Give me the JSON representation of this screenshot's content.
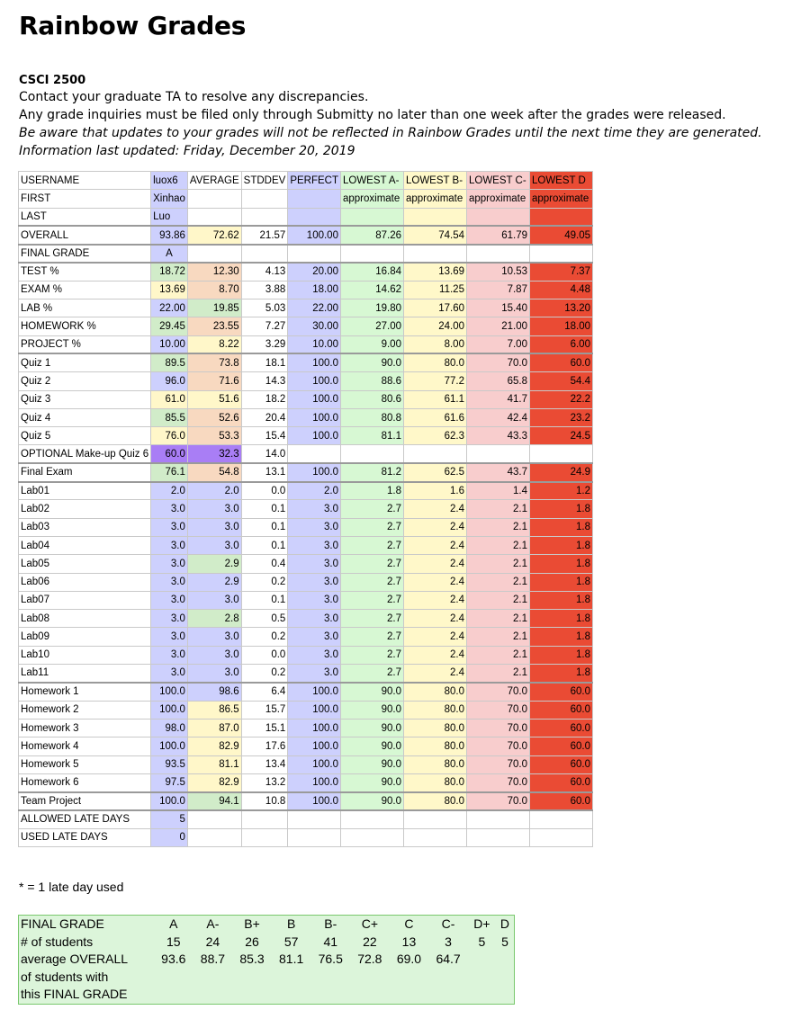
{
  "title": "Rainbow Grades",
  "course": "CSCI 2500",
  "info": {
    "line1": "Contact your graduate TA to resolve any discrepancies.",
    "line2": "Any grade inquiries must be filed only through Submitty no later than one week after the grades were released.",
    "line3": "Be aware that updates to your grades will not be reflected in Rainbow Grades until the next time they are generated.",
    "line4": "Information last updated: Friday, December 20, 2019"
  },
  "colors": {
    "student": "#cdd0fd",
    "student_highlight": "#a97ef5",
    "avg_low": "#f8d9c0",
    "avg_mid": "#fff7c9",
    "avg_high": "#d1ecc9",
    "perfect": "#cdd0fd",
    "lowest_a": "#d7f8d3",
    "lowest_b": "#fff8c9",
    "lowest_c": "#f8cdcd",
    "lowest_d": "#ea4b34",
    "summary_bg": "#dcf5da"
  },
  "header_rows": [
    {
      "label": "USERNAME",
      "cells": [
        "luox6",
        "AVERAGE",
        "STDDEV",
        "PERFECT",
        "LOWEST A-",
        "LOWEST B-",
        "LOWEST C-",
        "LOWEST D"
      ]
    },
    {
      "label": "FIRST",
      "cells": [
        "Xinhao",
        "",
        "",
        "",
        "approximate",
        "approximate",
        "approximate",
        "approximate"
      ]
    },
    {
      "label": "LAST",
      "cells": [
        "Luo",
        "",
        "",
        "",
        "",
        "",
        "",
        ""
      ]
    }
  ],
  "rows": [
    {
      "label": "OVERALL",
      "cells": [
        "93.86",
        "72.62",
        "21.57",
        "100.00",
        "87.26",
        "74.54",
        "61.79",
        "49.05"
      ],
      "sep": true,
      "avg_color": "avg_mid"
    },
    {
      "label": "FINAL GRADE",
      "cells": [
        "A",
        "",
        "",
        "",
        "",
        "",
        "",
        ""
      ],
      "sep": true,
      "center_first": true,
      "blank_row": true
    },
    {
      "label": "TEST %",
      "cells": [
        "18.72",
        "12.30",
        "4.13",
        "20.00",
        "16.84",
        "13.69",
        "10.53",
        "7.37"
      ],
      "sep": true,
      "student_color": "avg_high",
      "avg_color": "avg_low"
    },
    {
      "label": "EXAM %",
      "cells": [
        "13.69",
        "8.70",
        "3.88",
        "18.00",
        "14.62",
        "11.25",
        "7.87",
        "4.48"
      ],
      "student_color": "avg_mid",
      "avg_color": "avg_low"
    },
    {
      "label": "LAB %",
      "cells": [
        "22.00",
        "19.85",
        "5.03",
        "22.00",
        "19.80",
        "17.60",
        "15.40",
        "13.20"
      ],
      "avg_color": "avg_high"
    },
    {
      "label": "HOMEWORK %",
      "cells": [
        "29.45",
        "23.55",
        "7.27",
        "30.00",
        "27.00",
        "24.00",
        "21.00",
        "18.00"
      ],
      "student_color": "avg_high",
      "avg_color": "avg_low"
    },
    {
      "label": "PROJECT %",
      "cells": [
        "10.00",
        "8.22",
        "3.29",
        "10.00",
        "9.00",
        "8.00",
        "7.00",
        "6.00"
      ],
      "avg_color": "avg_mid"
    },
    {
      "label": "Quiz 1",
      "cells": [
        "89.5",
        "73.8",
        "18.1",
        "100.0",
        "90.0",
        "80.0",
        "70.0",
        "60.0"
      ],
      "sep": true,
      "student_color": "avg_high",
      "avg_color": "avg_low"
    },
    {
      "label": "Quiz 2",
      "cells": [
        "96.0",
        "71.6",
        "14.3",
        "100.0",
        "88.6",
        "77.2",
        "65.8",
        "54.4"
      ],
      "avg_color": "avg_low"
    },
    {
      "label": "Quiz 3",
      "cells": [
        "61.0",
        "51.6",
        "18.2",
        "100.0",
        "80.6",
        "61.1",
        "41.7",
        "22.2"
      ],
      "student_color": "avg_mid",
      "avg_color": "avg_mid"
    },
    {
      "label": "Quiz 4",
      "cells": [
        "85.5",
        "52.6",
        "20.4",
        "100.0",
        "80.8",
        "61.6",
        "42.4",
        "23.2"
      ],
      "student_color": "avg_high",
      "avg_color": "avg_low"
    },
    {
      "label": "Quiz 5",
      "cells": [
        "76.0",
        "53.3",
        "15.4",
        "100.0",
        "81.1",
        "62.3",
        "43.3",
        "24.5"
      ],
      "student_color": "avg_mid",
      "avg_color": "avg_low"
    },
    {
      "label": "OPTIONAL Make-up Quiz 6",
      "cells": [
        "60.0",
        "32.3",
        "14.0",
        "",
        "",
        "",
        "",
        ""
      ],
      "student_color": "student_highlight",
      "avg_color": "student_highlight",
      "blank_row": true
    },
    {
      "label": "Final Exam",
      "cells": [
        "76.1",
        "54.8",
        "13.1",
        "100.0",
        "81.2",
        "62.5",
        "43.7",
        "24.9"
      ],
      "sep": true,
      "student_color": "avg_high",
      "avg_color": "avg_low"
    },
    {
      "label": "Lab01",
      "cells": [
        "2.0",
        "2.0",
        "0.0",
        "2.0",
        "1.8",
        "1.6",
        "1.4",
        "1.2"
      ],
      "sep": true,
      "avg_color": "student"
    },
    {
      "label": "Lab02",
      "cells": [
        "3.0",
        "3.0",
        "0.1",
        "3.0",
        "2.7",
        "2.4",
        "2.1",
        "1.8"
      ],
      "avg_color": "student"
    },
    {
      "label": "Lab03",
      "cells": [
        "3.0",
        "3.0",
        "0.1",
        "3.0",
        "2.7",
        "2.4",
        "2.1",
        "1.8"
      ],
      "avg_color": "student"
    },
    {
      "label": "Lab04",
      "cells": [
        "3.0",
        "3.0",
        "0.1",
        "3.0",
        "2.7",
        "2.4",
        "2.1",
        "1.8"
      ],
      "avg_color": "student"
    },
    {
      "label": "Lab05",
      "cells": [
        "3.0",
        "2.9",
        "0.4",
        "3.0",
        "2.7",
        "2.4",
        "2.1",
        "1.8"
      ],
      "avg_color": "avg_high"
    },
    {
      "label": "Lab06",
      "cells": [
        "3.0",
        "2.9",
        "0.2",
        "3.0",
        "2.7",
        "2.4",
        "2.1",
        "1.8"
      ],
      "avg_color": "student"
    },
    {
      "label": "Lab07",
      "cells": [
        "3.0",
        "3.0",
        "0.1",
        "3.0",
        "2.7",
        "2.4",
        "2.1",
        "1.8"
      ],
      "avg_color": "student"
    },
    {
      "label": "Lab08",
      "cells": [
        "3.0",
        "2.8",
        "0.5",
        "3.0",
        "2.7",
        "2.4",
        "2.1",
        "1.8"
      ],
      "avg_color": "avg_high"
    },
    {
      "label": "Lab09",
      "cells": [
        "3.0",
        "3.0",
        "0.2",
        "3.0",
        "2.7",
        "2.4",
        "2.1",
        "1.8"
      ],
      "avg_color": "student"
    },
    {
      "label": "Lab10",
      "cells": [
        "3.0",
        "3.0",
        "0.0",
        "3.0",
        "2.7",
        "2.4",
        "2.1",
        "1.8"
      ],
      "avg_color": "student"
    },
    {
      "label": "Lab11",
      "cells": [
        "3.0",
        "3.0",
        "0.2",
        "3.0",
        "2.7",
        "2.4",
        "2.1",
        "1.8"
      ],
      "avg_color": "student"
    },
    {
      "label": "Homework 1",
      "cells": [
        "100.0",
        "98.6",
        "6.4",
        "100.0",
        "90.0",
        "80.0",
        "70.0",
        "60.0"
      ],
      "sep": true,
      "avg_color": "student"
    },
    {
      "label": "Homework 2",
      "cells": [
        "100.0",
        "86.5",
        "15.7",
        "100.0",
        "90.0",
        "80.0",
        "70.0",
        "60.0"
      ],
      "avg_color": "avg_mid"
    },
    {
      "label": "Homework 3",
      "cells": [
        "98.0",
        "87.0",
        "15.1",
        "100.0",
        "90.0",
        "80.0",
        "70.0",
        "60.0"
      ],
      "avg_color": "avg_mid"
    },
    {
      "label": "Homework 4",
      "cells": [
        "100.0",
        "82.9",
        "17.6",
        "100.0",
        "90.0",
        "80.0",
        "70.0",
        "60.0"
      ],
      "avg_color": "avg_mid"
    },
    {
      "label": "Homework 5",
      "cells": [
        "93.5",
        "81.1",
        "13.4",
        "100.0",
        "90.0",
        "80.0",
        "70.0",
        "60.0"
      ],
      "avg_color": "avg_mid"
    },
    {
      "label": "Homework 6",
      "cells": [
        "97.5",
        "82.9",
        "13.2",
        "100.0",
        "90.0",
        "80.0",
        "70.0",
        "60.0"
      ],
      "avg_color": "avg_mid"
    },
    {
      "label": "Team Project",
      "cells": [
        "100.0",
        "94.1",
        "10.8",
        "100.0",
        "90.0",
        "80.0",
        "70.0",
        "60.0"
      ],
      "sep": true,
      "avg_color": "avg_high"
    },
    {
      "label": "ALLOWED LATE DAYS",
      "cells": [
        "5",
        "",
        "",
        "",
        "",
        "",
        "",
        ""
      ],
      "sep": true,
      "blank_row": true
    },
    {
      "label": "USED LATE DAYS",
      "cells": [
        "0",
        "",
        "",
        "",
        "",
        "",
        "",
        ""
      ],
      "blank_row": true
    }
  ],
  "footnote": "* = 1 late day used",
  "summary": {
    "row1_label": "FINAL GRADE",
    "grades": [
      "A",
      "A-",
      "B+",
      "B",
      "B-",
      "C+",
      "C",
      "C-",
      "D+",
      "D"
    ],
    "row2_label": "# of students",
    "counts": [
      "15",
      "24",
      "26",
      "57",
      "41",
      "22",
      "13",
      "3",
      "5",
      "5"
    ],
    "row3_label": "average OVERALL",
    "averages": [
      "93.6",
      "88.7",
      "85.3",
      "81.1",
      "76.5",
      "72.8",
      "69.0",
      "64.7",
      "",
      ""
    ],
    "row4_label": "of students with",
    "row5_label": "this FINAL GRADE"
  }
}
